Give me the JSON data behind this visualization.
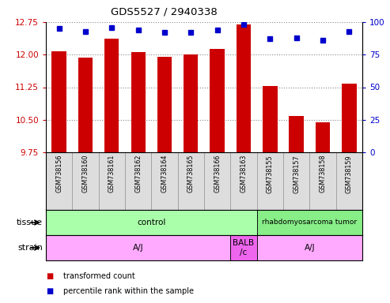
{
  "title": "GDS5527 / 2940338",
  "samples": [
    "GSM738156",
    "GSM738160",
    "GSM738161",
    "GSM738162",
    "GSM738164",
    "GSM738165",
    "GSM738166",
    "GSM738163",
    "GSM738155",
    "GSM738157",
    "GSM738158",
    "GSM738159"
  ],
  "bar_values": [
    12.08,
    11.93,
    12.37,
    12.05,
    11.95,
    12.0,
    12.13,
    12.7,
    11.27,
    10.58,
    10.45,
    11.33
  ],
  "dot_values": [
    95,
    93,
    96,
    94,
    92,
    92,
    94,
    98,
    87,
    88,
    86,
    93
  ],
  "ymin": 9.75,
  "ymax": 12.75,
  "yticks_left": [
    9.75,
    10.5,
    11.25,
    12.0,
    12.75
  ],
  "yticks_right": [
    0,
    25,
    50,
    75,
    100
  ],
  "tissue_groups": [
    {
      "label": "control",
      "start": 0,
      "end": 8,
      "color": "#aaffaa"
    },
    {
      "label": "rhabdomyosarcoma tumor",
      "start": 8,
      "end": 12,
      "color": "#88ee88"
    }
  ],
  "strain_groups": [
    {
      "label": "A/J",
      "start": 0,
      "end": 7,
      "color": "#ffaaff"
    },
    {
      "label": "BALB\n/c",
      "start": 7,
      "end": 8,
      "color": "#ee66ee"
    },
    {
      "label": "A/J",
      "start": 8,
      "end": 12,
      "color": "#ffaaff"
    }
  ],
  "bar_color": "#cc0000",
  "dot_color": "#0000cc",
  "grid_color": "#888888",
  "left_label_color": "#cc0000",
  "right_label_color": "#0000cc",
  "sample_bg_color": "#dddddd",
  "sample_divider_color": "#999999"
}
